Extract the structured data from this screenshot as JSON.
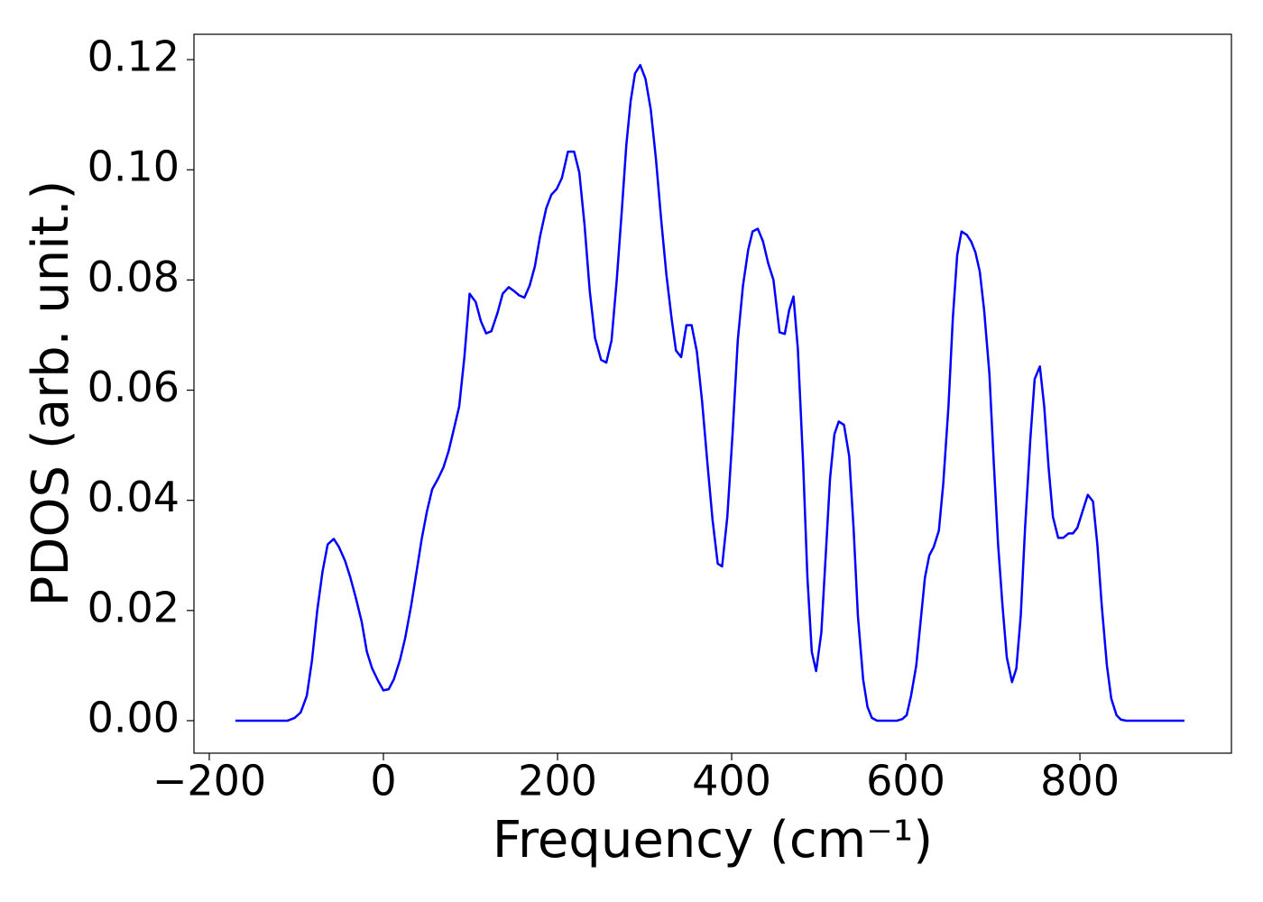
{
  "chart_data": {
    "type": "line",
    "xlabel": "Frequency (cm⁻¹)",
    "ylabel": "PDOS (arb. unit.)",
    "color": "#0000ff",
    "xlim": [
      -217.6,
      974
    ],
    "ylim": [
      -0.0059,
      0.1246
    ],
    "xticks": [
      {
        "value": -200,
        "label": "−200"
      },
      0,
      200,
      400,
      600,
      800
    ],
    "yticks": [
      {
        "value": 0,
        "label": "0.00"
      },
      {
        "value": 0.02,
        "label": "0.02"
      },
      {
        "value": 0.04,
        "label": "0.04"
      },
      {
        "value": 0.06,
        "label": "0.06"
      },
      {
        "value": 0.08,
        "label": "0.08"
      },
      {
        "value": 0.1,
        "label": "0.10"
      },
      {
        "value": 0.12,
        "label": "0.12"
      }
    ],
    "grid": false,
    "x": [
      -170,
      -110,
      -102,
      -95,
      -88,
      -82,
      -76,
      -70,
      -64,
      -57,
      -51,
      -44,
      -38,
      -32,
      -25,
      -19,
      -13,
      -6,
      0,
      6,
      12,
      19,
      25,
      32,
      38,
      44,
      50,
      56,
      63,
      69,
      75,
      81,
      87,
      93,
      99,
      106,
      112,
      118,
      124,
      131,
      137,
      144,
      150,
      156,
      162,
      168,
      174,
      180,
      187,
      193,
      199,
      205,
      212,
      219,
      225,
      231,
      237,
      243,
      250,
      256,
      262,
      268,
      274,
      279,
      284,
      289,
      295,
      301,
      307,
      313,
      319,
      325,
      331,
      336,
      342,
      348,
      354,
      360,
      366,
      372,
      378,
      384,
      389,
      395,
      401,
      407,
      413,
      419,
      424,
      430,
      436,
      442,
      448,
      455,
      461,
      466,
      471,
      476,
      482,
      487,
      492,
      497,
      503,
      508,
      513,
      518,
      523,
      529,
      535,
      540,
      545,
      551,
      556,
      561,
      567,
      590,
      596,
      601,
      606,
      612,
      617,
      622,
      627,
      632,
      638,
      643,
      649,
      654,
      659,
      664,
      670,
      675,
      680,
      685,
      690,
      696,
      701,
      706,
      711,
      716,
      722,
      727,
      732,
      737,
      743,
      748,
      754,
      759,
      764,
      769,
      775,
      781,
      787,
      792,
      797,
      803,
      809,
      815,
      820,
      825,
      831,
      836,
      842,
      847,
      853,
      920
    ],
    "values": [
      0,
      0,
      0.0005,
      0.0015,
      0.0045,
      0.011,
      0.02,
      0.027,
      0.032,
      0.033,
      0.0315,
      0.029,
      0.026,
      0.0225,
      0.018,
      0.0125,
      0.0095,
      0.0072,
      0.0055,
      0.0057,
      0.0075,
      0.011,
      0.015,
      0.021,
      0.027,
      0.033,
      0.038,
      0.042,
      0.044,
      0.046,
      0.049,
      0.053,
      0.057,
      0.066,
      0.0775,
      0.076,
      0.0725,
      0.0703,
      0.0707,
      0.074,
      0.0775,
      0.0787,
      0.078,
      0.0772,
      0.0768,
      0.079,
      0.0825,
      0.088,
      0.093,
      0.0955,
      0.0965,
      0.0985,
      0.1033,
      0.1033,
      0.0995,
      0.09,
      0.078,
      0.0695,
      0.0655,
      0.065,
      0.069,
      0.08,
      0.093,
      0.1045,
      0.1125,
      0.1175,
      0.119,
      0.1165,
      0.111,
      0.102,
      0.091,
      0.081,
      0.073,
      0.0672,
      0.066,
      0.0718,
      0.0718,
      0.067,
      0.058,
      0.047,
      0.0365,
      0.0285,
      0.028,
      0.037,
      0.052,
      0.069,
      0.079,
      0.0855,
      0.0888,
      0.0893,
      0.087,
      0.083,
      0.08,
      0.0705,
      0.0702,
      0.0745,
      0.077,
      0.0675,
      0.047,
      0.026,
      0.0125,
      0.009,
      0.016,
      0.03,
      0.044,
      0.052,
      0.0543,
      0.0537,
      0.048,
      0.035,
      0.019,
      0.0075,
      0.0025,
      0.0005,
      0,
      0,
      0.0003,
      0.001,
      0.0045,
      0.01,
      0.018,
      0.026,
      0.03,
      0.0315,
      0.0345,
      0.043,
      0.057,
      0.073,
      0.0845,
      0.0888,
      0.0882,
      0.087,
      0.085,
      0.0815,
      0.0745,
      0.063,
      0.047,
      0.032,
      0.021,
      0.0115,
      0.007,
      0.0095,
      0.019,
      0.035,
      0.051,
      0.062,
      0.0643,
      0.057,
      0.046,
      0.037,
      0.0332,
      0.0332,
      0.034,
      0.034,
      0.035,
      0.038,
      0.041,
      0.0398,
      0.032,
      0.021,
      0.01,
      0.004,
      0.001,
      0.0002,
      0,
      0
    ]
  }
}
